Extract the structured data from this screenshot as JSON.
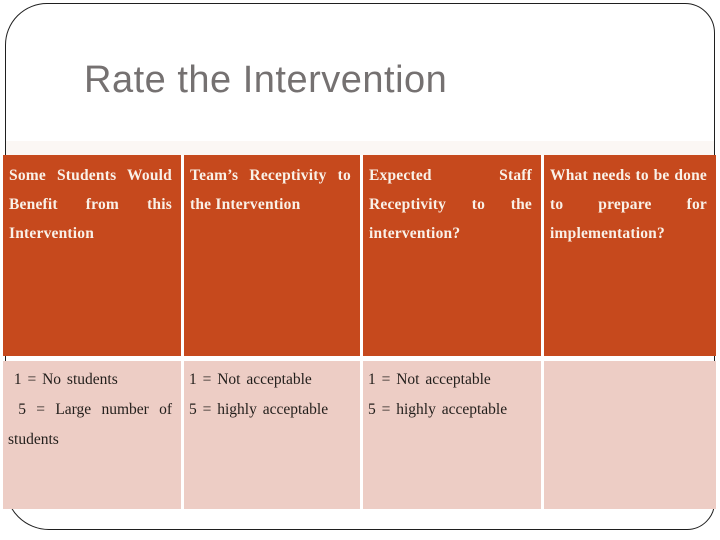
{
  "slide": {
    "title": "Rate the Intervention"
  },
  "colors": {
    "header_bg": "#C6491D",
    "header_text": "#F9F1E8",
    "body_bg": "#EDCDC5",
    "body_text": "#221E1B",
    "title_text": "#757171",
    "frame_border": "#1F1F1F"
  },
  "table": {
    "columns": [
      {
        "header": "Some Students Would Benefit from this Intervention",
        "body_lines": [
          " 1 = No students",
          " 5 = Large number of students"
        ]
      },
      {
        "header": "Team’s Receptivity to the Intervention",
        "body_lines": [
          "1 = Not acceptable",
          "5 = highly acceptable"
        ]
      },
      {
        "header": "Expected Staff Receptivity to the intervention?",
        "body_lines": [
          "1 = Not acceptable",
          "5 = highly acceptable"
        ]
      },
      {
        "header": "What needs to be done to prepare for implementation?",
        "body_lines": []
      }
    ]
  }
}
